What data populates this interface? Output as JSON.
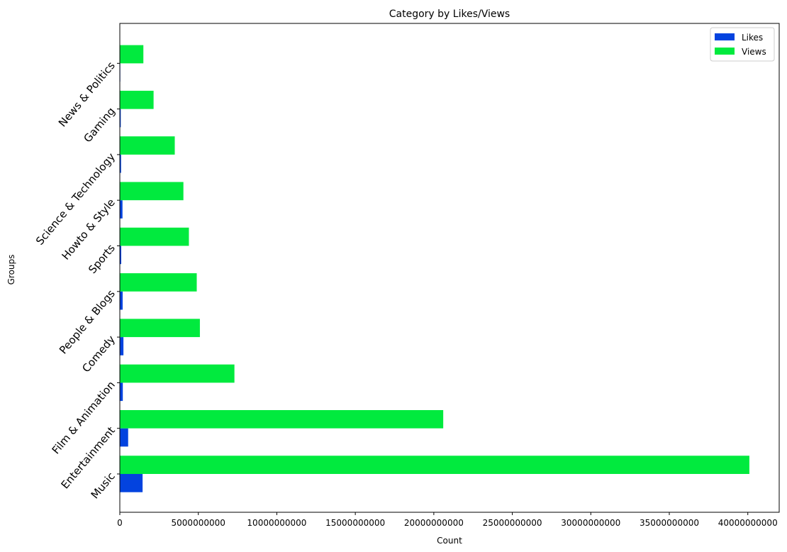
{
  "chart_data": {
    "type": "bar",
    "orientation": "horizontal",
    "title": "Category by Likes/Views",
    "xlabel": "Count",
    "ylabel": "Groups",
    "categories": [
      "Music",
      "Entertainment",
      "Film & Animation",
      "Comedy",
      "People & Blogs",
      "Sports",
      "Howto & Style",
      "Science & Technology",
      "Gaming",
      "News & Politics"
    ],
    "series": [
      {
        "name": "Likes",
        "color": "#0343df",
        "values": [
          1450000000,
          530000000,
          190000000,
          230000000,
          180000000,
          90000000,
          170000000,
          80000000,
          60000000,
          30000000
        ]
      },
      {
        "name": "Views",
        "color": "#01ea3e",
        "values": [
          40100000000,
          20600000000,
          7300000000,
          5100000000,
          4900000000,
          4400000000,
          4050000000,
          3500000000,
          2150000000,
          1500000000
        ]
      }
    ],
    "xlim": [
      0,
      42000000000
    ],
    "xticks": [
      0,
      5000000000,
      10000000000,
      15000000000,
      20000000000,
      25000000000,
      30000000000,
      35000000000,
      40000000000
    ],
    "xtick_labels": [
      "0",
      "5000000000",
      "10000000000",
      "15000000000",
      "20000000000",
      "25000000000",
      "30000000000",
      "35000000000",
      "40000000000"
    ],
    "grid": false,
    "legend_position": "top-right"
  }
}
